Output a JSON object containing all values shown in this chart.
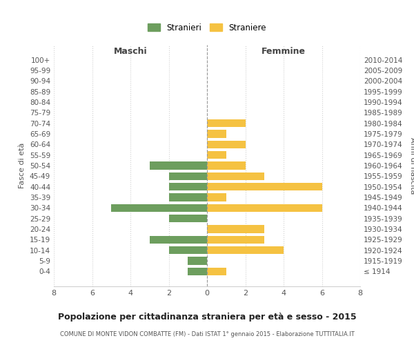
{
  "age_groups": [
    "100+",
    "95-99",
    "90-94",
    "85-89",
    "80-84",
    "75-79",
    "70-74",
    "65-69",
    "60-64",
    "55-59",
    "50-54",
    "45-49",
    "40-44",
    "35-39",
    "30-34",
    "25-29",
    "20-24",
    "15-19",
    "10-14",
    "5-9",
    "0-4"
  ],
  "birth_years": [
    "≤ 1914",
    "1915-1919",
    "1920-1924",
    "1925-1929",
    "1930-1934",
    "1935-1939",
    "1940-1944",
    "1945-1949",
    "1950-1954",
    "1955-1959",
    "1960-1964",
    "1965-1969",
    "1970-1974",
    "1975-1979",
    "1980-1984",
    "1985-1989",
    "1990-1994",
    "1995-1999",
    "2000-2004",
    "2005-2009",
    "2010-2014"
  ],
  "maschi": [
    0,
    0,
    0,
    0,
    0,
    0,
    0,
    0,
    0,
    0,
    3,
    2,
    2,
    2,
    5,
    2,
    0,
    3,
    2,
    1,
    1
  ],
  "femmine": [
    0,
    0,
    0,
    0,
    0,
    0,
    2,
    1,
    2,
    1,
    2,
    3,
    6,
    1,
    6,
    0,
    3,
    3,
    4,
    0,
    1
  ],
  "color_maschi": "#6d9e5e",
  "color_femmine": "#f5c242",
  "title": "Popolazione per cittadinanza straniera per età e sesso - 2015",
  "subtitle": "COMUNE DI MONTE VIDON COMBATTE (FM) - Dati ISTAT 1° gennaio 2015 - Elaborazione TUTTITALIA.IT",
  "ylabel_left": "Fasce di età",
  "ylabel_right": "Anni di nascita",
  "xlabel_left": "Maschi",
  "xlabel_right": "Femmine",
  "xlim": 8,
  "legend_stranieri": "Stranieri",
  "legend_straniere": "Straniere",
  "background_color": "#ffffff",
  "grid_color": "#d0d0d0",
  "text_color": "#555555"
}
